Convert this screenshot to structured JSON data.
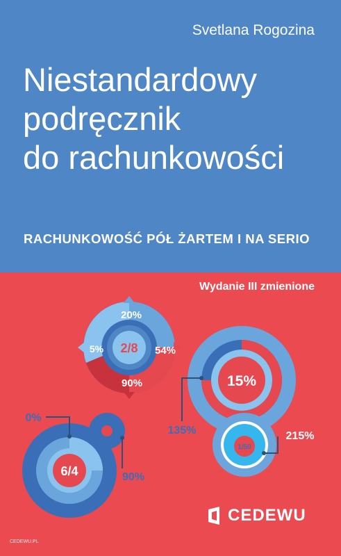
{
  "cover": {
    "author": "Svetlana Rogozina",
    "title_lines": [
      "Niestandardowy",
      "podręcznik",
      "do rachunkowości"
    ],
    "subtitle": "RACHUNKOWOŚĆ PÓŁ ŻARTEM I NA SERIO",
    "edition": "Wydanie III zmienione",
    "publisher": "CEDEWU",
    "small_logo": "CEDEWU.PL"
  },
  "graphics": {
    "ring_top": {
      "segments": [
        "20%",
        "54%",
        "90%",
        "5%"
      ],
      "center": "2/8"
    },
    "ring_right": {
      "center": "15%",
      "label": "135%"
    },
    "ring_small": {
      "center": "1/50",
      "label": "215%"
    },
    "ring_left": {
      "center": "6/4",
      "label_top": "0%",
      "label_bottom": "90%"
    }
  },
  "colors": {
    "top_blue": "#4f86c6",
    "bottom_red": "#ea4a50",
    "deep_blue": "#3a6fb8",
    "light_blue": "#8ac4ee",
    "cyan": "#35b6ec",
    "dark_red": "#c8323c"
  }
}
